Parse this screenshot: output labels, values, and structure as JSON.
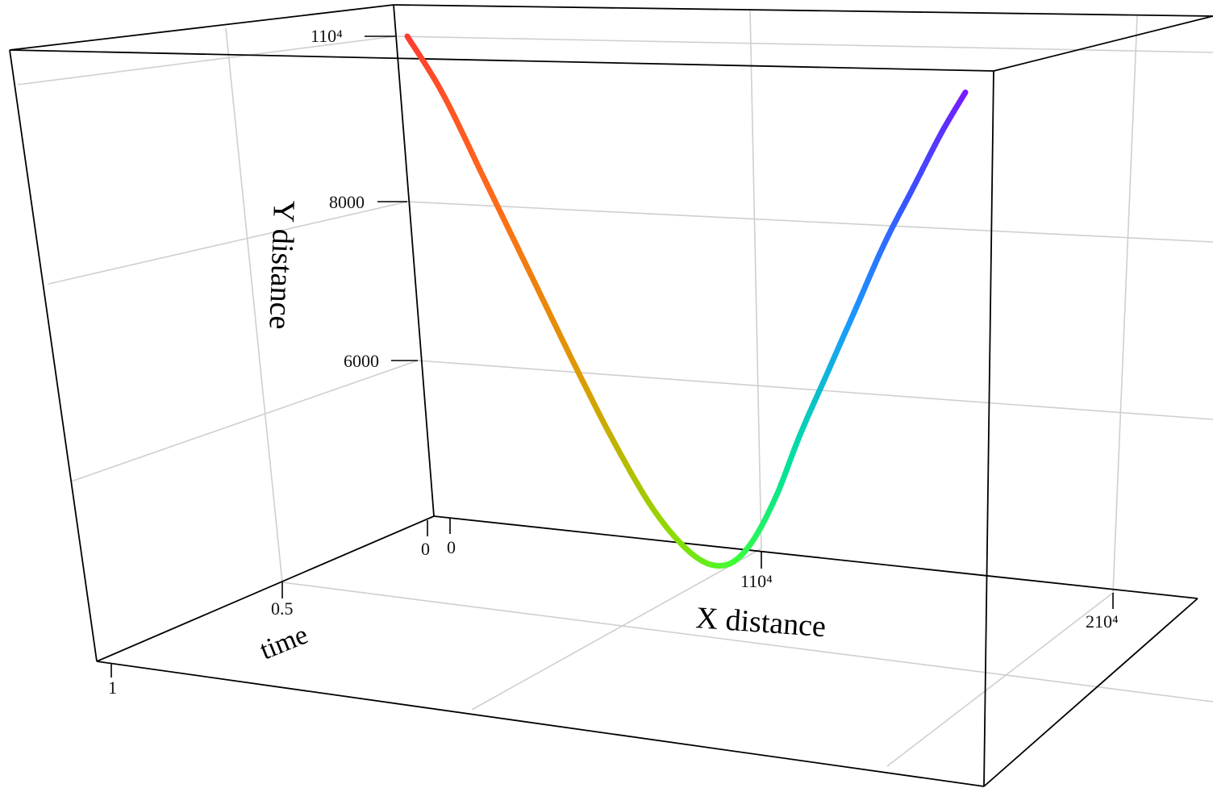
{
  "chart_data": {
    "type": "line",
    "projection": "3d",
    "axes": {
      "x": {
        "label": "X distance",
        "ticks": [
          "0",
          "110⁴",
          "210⁴"
        ]
      },
      "y": {
        "label": "Y distance",
        "ticks": [
          "6000",
          "8000",
          "110⁴"
        ]
      },
      "time": {
        "label": "time",
        "ticks": [
          "0",
          "0.5",
          "1"
        ]
      }
    },
    "series": [
      {
        "color_scale": [
          "#ff3b30",
          "#ff6a1a",
          "#d9a000",
          "#8cdc00",
          "#3aff3a",
          "#00e0a0",
          "#1a9aff",
          "#3a50ff",
          "#7a18ff"
        ],
        "points": [
          {
            "t": 0.0,
            "x": 0,
            "y": 10000
          },
          {
            "t": 0.05,
            "x": 1000,
            "y": 9300
          },
          {
            "t": 0.1,
            "x": 2200,
            "y": 8200
          },
          {
            "t": 0.15,
            "x": 3400,
            "y": 7100
          },
          {
            "t": 0.2,
            "x": 4600,
            "y": 6000
          },
          {
            "t": 0.25,
            "x": 5700,
            "y": 5050
          },
          {
            "t": 0.3,
            "x": 6800,
            "y": 4250
          },
          {
            "t": 0.35,
            "x": 7900,
            "y": 3750
          },
          {
            "t": 0.4,
            "x": 8800,
            "y": 3650
          },
          {
            "t": 0.45,
            "x": 9600,
            "y": 3900
          },
          {
            "t": 0.5,
            "x": 10500,
            "y": 4500
          },
          {
            "t": 0.55,
            "x": 11400,
            "y": 5300
          },
          {
            "t": 0.6,
            "x": 12400,
            "y": 6100
          },
          {
            "t": 0.65,
            "x": 13400,
            "y": 6900
          },
          {
            "t": 0.7,
            "x": 14400,
            "y": 7700
          },
          {
            "t": 0.75,
            "x": 15400,
            "y": 8400
          },
          {
            "t": 0.8,
            "x": 16400,
            "y": 9100
          },
          {
            "t": 0.85,
            "x": 17200,
            "y": 9600
          }
        ]
      }
    ]
  }
}
